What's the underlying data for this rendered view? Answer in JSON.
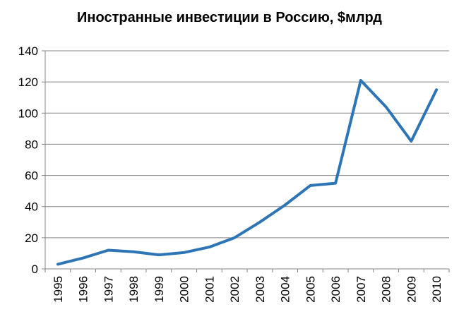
{
  "chart_data": {
    "type": "line",
    "title": "Иностранные инвестиции в Россию, $млрд",
    "xlabel": "",
    "ylabel": "",
    "categories": [
      "1995",
      "1996",
      "1997",
      "1998",
      "1999",
      "2000",
      "2001",
      "2002",
      "2003",
      "2004",
      "2005",
      "2006",
      "2007",
      "2008",
      "2009",
      "2010"
    ],
    "series": [
      {
        "values": [
          3,
          7,
          12,
          11,
          9,
          10.5,
          14,
          20,
          30,
          41,
          53.5,
          55,
          121,
          104,
          82,
          115
        ],
        "color": "#2e75b6"
      }
    ],
    "ylim": [
      0,
      140
    ],
    "yticks": [
      0,
      20,
      40,
      60,
      80,
      100,
      120,
      140
    ],
    "grid": true,
    "legend": "none"
  }
}
